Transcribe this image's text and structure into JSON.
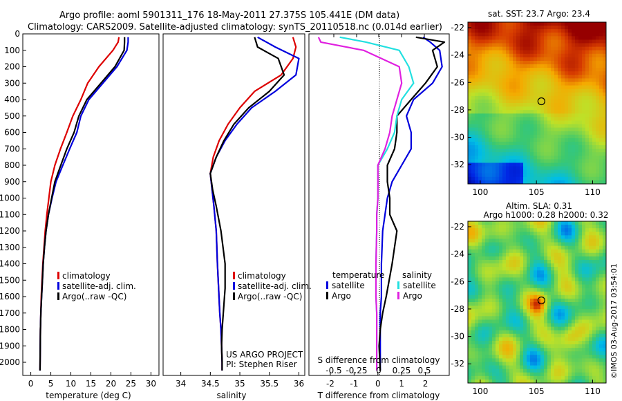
{
  "header": {
    "line1": "Argo profile: aoml 5901311_176 18-May-2011 27.375S 105.441E (DM data)",
    "line2": "Climatology: CARS2009. Satellite-adjusted climatology: synTS_20110518.nc (0.014d earlier)"
  },
  "colors": {
    "red": "#dd0000",
    "blue": "#0000dd",
    "black": "#000000",
    "cyan": "#22e0e0",
    "magenta": "#e020e0"
  },
  "depth_axis": {
    "ticks": [
      0,
      100,
      200,
      300,
      400,
      500,
      600,
      700,
      800,
      900,
      1000,
      1100,
      1200,
      1300,
      1400,
      1500,
      1600,
      1700,
      1800,
      1900,
      2000
    ],
    "range": [
      0,
      2080
    ]
  },
  "chart_data": [
    {
      "type": "line",
      "name": "temperature-profile",
      "xlabel": "temperature (deg C)",
      "xlim": [
        -2,
        32
      ],
      "xticks": [
        0,
        5,
        10,
        15,
        20,
        25,
        30
      ],
      "ylim": [
        2080,
        0
      ],
      "legend": [
        "climatology",
        "satellite-adj. clim.",
        "Argo(..raw -QC)"
      ],
      "series": [
        {
          "name": "climatology",
          "color": "red",
          "x": [
            22,
            21.8,
            20.5,
            17,
            14.2,
            12.5,
            10.5,
            9,
            7.4,
            6,
            5,
            4.5,
            4,
            3.6,
            3.3,
            3,
            2.8,
            2.6,
            2.5,
            2.4,
            2.3
          ],
          "depth": [
            20,
            50,
            100,
            200,
            300,
            400,
            500,
            600,
            700,
            800,
            900,
            1000,
            1100,
            1200,
            1300,
            1400,
            1500,
            1600,
            1700,
            1800,
            2050
          ]
        },
        {
          "name": "satellite-adj. clim.",
          "color": "blue",
          "x": [
            24.3,
            24.3,
            24,
            21.5,
            18,
            14.5,
            12.5,
            11.5,
            9.7,
            8,
            6.3,
            5.3,
            4.4,
            3.8,
            3.4,
            3.1,
            2.9,
            2.7,
            2.5,
            2.4,
            2.3
          ],
          "depth": [
            20,
            50,
            100,
            200,
            300,
            400,
            500,
            600,
            700,
            800,
            900,
            1000,
            1100,
            1200,
            1300,
            1400,
            1500,
            1600,
            1700,
            1800,
            2050
          ]
        },
        {
          "name": "Argo(..raw -QC)",
          "color": "black",
          "x": [
            23.4,
            23.4,
            23.3,
            21,
            17.5,
            14,
            12,
            10.8,
            9,
            7.5,
            6,
            5.2,
            4.4,
            3.8,
            3.4,
            3.1,
            2.9,
            2.7,
            2.5,
            2.4,
            2.3
          ],
          "depth": [
            20,
            50,
            100,
            200,
            300,
            400,
            500,
            600,
            700,
            800,
            900,
            1000,
            1100,
            1200,
            1300,
            1400,
            1500,
            1600,
            1700,
            1800,
            2050
          ]
        }
      ]
    },
    {
      "type": "line",
      "name": "salinity-profile",
      "xlabel": "salinity",
      "xlim": [
        33.7,
        36.1
      ],
      "xticks": [
        34,
        34.5,
        35,
        35.5,
        36
      ],
      "ylim": [
        2080,
        0
      ],
      "legend": [
        "climatology",
        "satellite-adj. clim.",
        "Argo(..raw -QC)"
      ],
      "series": [
        {
          "name": "climatology",
          "color": "red",
          "x": [
            35.9,
            35.95,
            35.9,
            35.7,
            35.25,
            35,
            34.8,
            34.65,
            34.55,
            34.5,
            34.53,
            34.56,
            34.6,
            34.62,
            34.64,
            34.66,
            34.68,
            34.69,
            34.7,
            34.7
          ],
          "depth": [
            20,
            80,
            150,
            250,
            350,
            450,
            550,
            650,
            750,
            850,
            950,
            1050,
            1200,
            1400,
            1550,
            1700,
            1800,
            1900,
            2000,
            2050
          ]
        },
        {
          "name": "satellite-adj. clim.",
          "color": "blue",
          "x": [
            35.3,
            35.6,
            36.0,
            35.95,
            35.6,
            35.2,
            34.95,
            34.75,
            34.6,
            34.5,
            34.53,
            34.56,
            34.6,
            34.62,
            34.64,
            34.66,
            34.68,
            34.69,
            34.7,
            34.7
          ],
          "depth": [
            20,
            80,
            150,
            250,
            350,
            450,
            550,
            650,
            750,
            850,
            950,
            1050,
            1200,
            1400,
            1550,
            1700,
            1800,
            1900,
            2000,
            2050
          ]
        },
        {
          "name": "Argo(..raw -QC)",
          "color": "black",
          "x": [
            35.25,
            35.3,
            35.65,
            35.75,
            35.5,
            35.15,
            34.9,
            34.73,
            34.6,
            34.5,
            34.54,
            34.6,
            34.68,
            34.75,
            34.75,
            34.72,
            34.7,
            34.69,
            34.7,
            34.7
          ],
          "depth": [
            20,
            80,
            150,
            250,
            350,
            450,
            550,
            650,
            750,
            850,
            950,
            1050,
            1200,
            1400,
            1550,
            1700,
            1800,
            1900,
            2000,
            2050
          ]
        }
      ]
    },
    {
      "type": "line",
      "name": "difference-profile",
      "xlabel": "T difference from climatology",
      "top_xlabel": "S difference from climatology",
      "xlim": [
        -2.9,
        3.0
      ],
      "xticks": [
        -2,
        -1,
        0,
        1,
        2
      ],
      "top_xticks": [
        "-0.5",
        "-0.25",
        "0",
        "0.25",
        "0.5"
      ],
      "ylim": [
        2080,
        0
      ],
      "legend": {
        "temperature": [
          "satellite",
          "Argo"
        ],
        "salinity": [
          "satellite",
          "Argo"
        ]
      },
      "series": [
        {
          "name": "temperature satellite",
          "color": "blue",
          "x": [
            1.9,
            2.2,
            2.6,
            2.7,
            2.3,
            1.5,
            1.2,
            1.4,
            1.4,
            1,
            0.6,
            0.4,
            0.3,
            0.2,
            0.15,
            0.15,
            0.1,
            0.1,
            0.1,
            0.1
          ],
          "depth": [
            20,
            50,
            100,
            200,
            300,
            400,
            500,
            600,
            700,
            800,
            900,
            1000,
            1100,
            1200,
            1400,
            1600,
            1700,
            1800,
            1900,
            2050
          ]
        },
        {
          "name": "temperature Argo",
          "color": "black",
          "x": [
            1.6,
            2.8,
            2.3,
            2.5,
            2.0,
            1.4,
            0.8,
            0.8,
            0.7,
            0.4,
            0.4,
            0.5,
            0.5,
            0.8,
            0.6,
            0.35,
            0.2,
            0.1,
            0.05,
            0.1
          ],
          "depth": [
            20,
            50,
            100,
            200,
            300,
            400,
            500,
            600,
            700,
            800,
            900,
            1000,
            1100,
            1200,
            1400,
            1600,
            1700,
            1800,
            1900,
            2050
          ]
        },
        {
          "name": "salinity satellite",
          "color": "cyan",
          "x": [
            -1.6,
            -0.5,
            0.9,
            1.3,
            1.5,
            1.0,
            0.8,
            0.7,
            0.4,
            0,
            0,
            0,
            -0.05,
            -0.05,
            -0.08,
            -0.08,
            -0.05,
            -0.05,
            -0.05,
            -0.05
          ],
          "depth": [
            20,
            50,
            100,
            200,
            300,
            400,
            500,
            600,
            700,
            800,
            900,
            1000,
            1100,
            1200,
            1400,
            1600,
            1700,
            1800,
            1900,
            2050
          ]
        },
        {
          "name": "salinity Argo",
          "color": "magenta",
          "x": [
            -2.5,
            -2.4,
            -0.6,
            0.9,
            1.0,
            0.8,
            0.6,
            0.5,
            0.3,
            0,
            0,
            0,
            -0.05,
            -0.05,
            -0.08,
            -0.08,
            -0.05,
            -0.05,
            -0.05,
            -0.05
          ],
          "depth": [
            20,
            50,
            100,
            200,
            300,
            400,
            500,
            600,
            700,
            800,
            900,
            1000,
            1100,
            1200,
            1400,
            1600,
            1700,
            1800,
            1900,
            2050
          ]
        }
      ]
    },
    {
      "type": "heatmap",
      "name": "sst-map",
      "title": "sat. SST: 23.7  Argo: 23.4",
      "xticks": [
        100,
        105,
        110
      ],
      "yticks": [
        -22,
        -24,
        -26,
        -28,
        -30,
        -32
      ],
      "xlim": [
        98.9,
        111.2
      ],
      "ylim": [
        -33.4,
        -21.6
      ],
      "marker": {
        "lon": 105.441,
        "lat": -27.375
      }
    },
    {
      "type": "heatmap",
      "name": "sla-map",
      "title_line1": "Altim. SLA: 0.31",
      "title_line2": "Argo h1000: 0.28 h2000: 0.32",
      "xticks": [
        100,
        105,
        110
      ],
      "yticks": [
        -22,
        -24,
        -26,
        -28,
        -30,
        -32
      ],
      "xlim": [
        98.9,
        111.2
      ],
      "ylim": [
        -33.4,
        -21.6
      ],
      "marker": {
        "lon": 105.441,
        "lat": -27.375
      }
    }
  ],
  "annotations": {
    "project": "US ARGO PROJECT",
    "pi": "PI: Stephen Riser",
    "legend_temperature": "temperature",
    "legend_salinity": "salinity",
    "legend_satellite": "satellite",
    "legend_argo": "Argo",
    "imos_stamp": "©IMOS 03-Aug-2017 03:54:01"
  }
}
